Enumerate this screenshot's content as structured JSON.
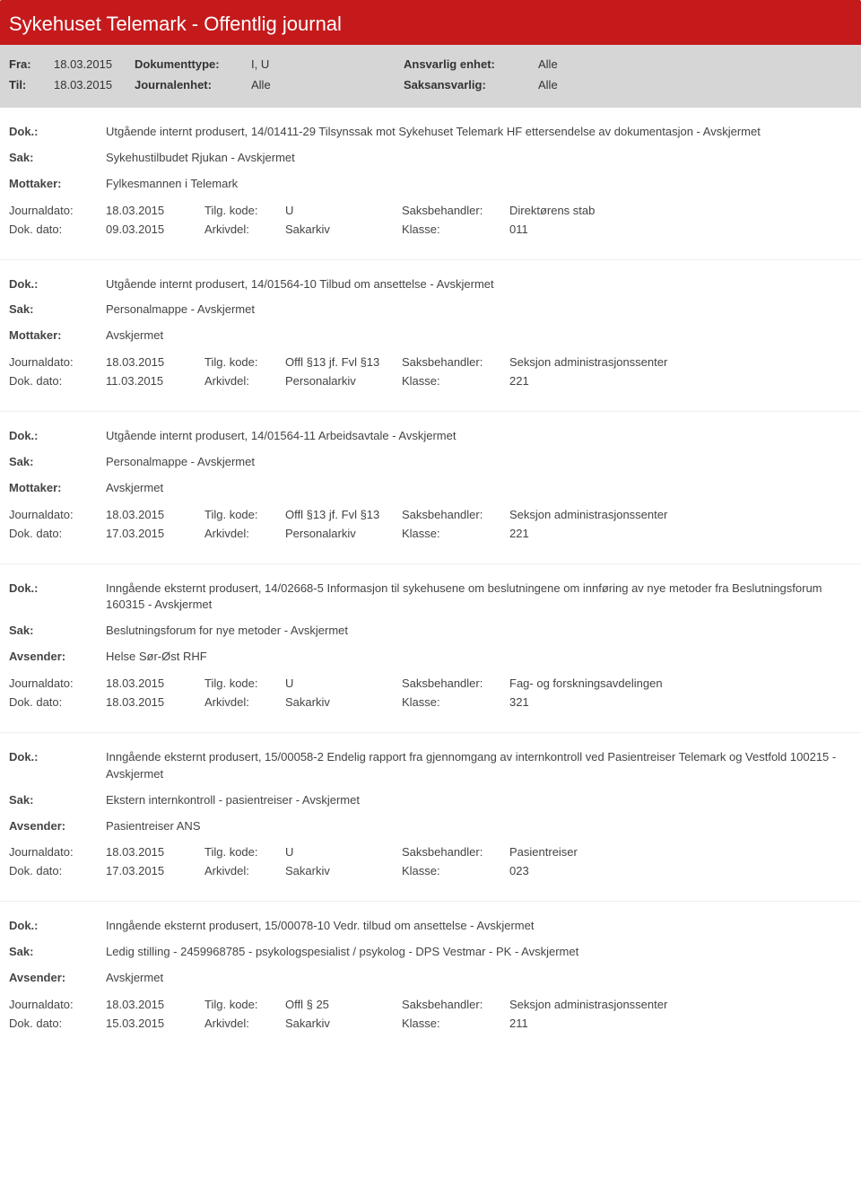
{
  "header": {
    "title": "Sykehuset Telemark - Offentlig journal"
  },
  "filter": {
    "row1": {
      "lbl1": "Fra:",
      "val1": "18.03.2015",
      "lbl2": "Dokumenttype:",
      "val2": "I, U",
      "lbl3": "Ansvarlig enhet:",
      "val3": "Alle"
    },
    "row2": {
      "lbl1": "Til:",
      "val1": "18.03.2015",
      "lbl2": "Journalenhet:",
      "val2": "Alle",
      "lbl3": "Saksansvarlig:",
      "val3": "Alle"
    }
  },
  "labels": {
    "dok": "Dok.:",
    "sak": "Sak:",
    "mottaker": "Mottaker:",
    "avsender": "Avsender:",
    "journaldato": "Journaldato:",
    "dokdato": "Dok. dato:",
    "tilgkode": "Tilg. kode:",
    "arkivdel": "Arkivdel:",
    "saksbehandler": "Saksbehandler:",
    "klasse": "Klasse:"
  },
  "entries": [
    {
      "dok": "Utgående internt produsert, 14/01411-29 Tilsynssak mot Sykehuset Telemark HF ettersendelse av dokumentasjon - Avskjermet",
      "sak": "Sykehustilbudet Rjukan - Avskjermet",
      "partyLabel": "Mottaker:",
      "party": "Fylkesmannen i Telemark",
      "journaldato": "18.03.2015",
      "tilgkode": "U",
      "saksbehandler": "Direktørens stab",
      "dokdato": "09.03.2015",
      "arkivdel": "Sakarkiv",
      "klasse": "011"
    },
    {
      "dok": "Utgående internt produsert, 14/01564-10 Tilbud om ansettelse - Avskjermet",
      "sak": "Personalmappe - Avskjermet",
      "partyLabel": "Mottaker:",
      "party": "Avskjermet",
      "journaldato": "18.03.2015",
      "tilgkode": "Offl §13 jf. Fvl §13",
      "saksbehandler": "Seksjon administrasjonssenter",
      "dokdato": "11.03.2015",
      "arkivdel": "Personalarkiv",
      "klasse": "221"
    },
    {
      "dok": "Utgående internt produsert, 14/01564-11 Arbeidsavtale - Avskjermet",
      "sak": "Personalmappe - Avskjermet",
      "partyLabel": "Mottaker:",
      "party": "Avskjermet",
      "journaldato": "18.03.2015",
      "tilgkode": "Offl §13 jf. Fvl §13",
      "saksbehandler": "Seksjon administrasjonssenter",
      "dokdato": "17.03.2015",
      "arkivdel": "Personalarkiv",
      "klasse": "221"
    },
    {
      "dok": "Inngående eksternt produsert, 14/02668-5 Informasjon til sykehusene om beslutningene om innføring av nye metoder fra Beslutningsforum 160315 - Avskjermet",
      "sak": "Beslutningsforum for nye metoder - Avskjermet",
      "partyLabel": "Avsender:",
      "party": "Helse Sør-Øst RHF",
      "journaldato": "18.03.2015",
      "tilgkode": "U",
      "saksbehandler": "Fag- og forskningsavdelingen",
      "dokdato": "18.03.2015",
      "arkivdel": "Sakarkiv",
      "klasse": "321"
    },
    {
      "dok": "Inngående eksternt produsert, 15/00058-2 Endelig rapport fra gjennomgang av internkontroll ved Pasientreiser Telemark og Vestfold 100215 - Avskjermet",
      "sak": "Ekstern internkontroll - pasientreiser - Avskjermet",
      "partyLabel": "Avsender:",
      "party": "Pasientreiser ANS",
      "journaldato": "18.03.2015",
      "tilgkode": "U",
      "saksbehandler": "Pasientreiser",
      "dokdato": "17.03.2015",
      "arkivdel": "Sakarkiv",
      "klasse": "023"
    },
    {
      "dok": "Inngående eksternt produsert, 15/00078-10 Vedr. tilbud om ansettelse - Avskjermet",
      "sak": "Ledig stilling - 2459968785 - psykologspesialist / psykolog - DPS Vestmar - PK - Avskjermet",
      "partyLabel": "Avsender:",
      "party": "Avskjermet",
      "journaldato": "18.03.2015",
      "tilgkode": "Offl § 25",
      "saksbehandler": "Seksjon administrasjonssenter",
      "dokdato": "15.03.2015",
      "arkivdel": "Sakarkiv",
      "klasse": "211"
    }
  ]
}
